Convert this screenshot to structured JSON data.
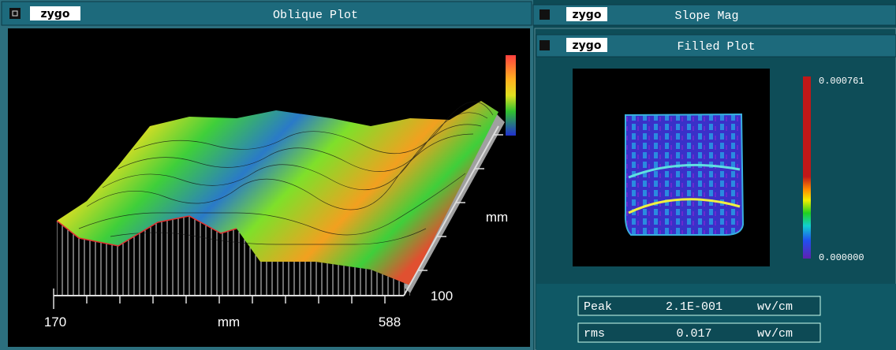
{
  "oblique_plot": {
    "logo": "zygo",
    "title": "Oblique Plot",
    "x_min": "170",
    "x_label": "mm",
    "x_max": "588",
    "y_label": "mm",
    "y_max": "100"
  },
  "slope_mag": {
    "logo": "zygo",
    "title": "Slope Mag"
  },
  "filled_plot": {
    "logo": "zygo",
    "title": "Filled Plot",
    "scale_max": "0.000761",
    "scale_min": "0.000000"
  },
  "results": [
    {
      "name": "Peak",
      "value": "2.1E-001",
      "unit": "wv/cm"
    },
    {
      "name": "rms",
      "value": "0.017",
      "unit": "wv/cm"
    }
  ]
}
